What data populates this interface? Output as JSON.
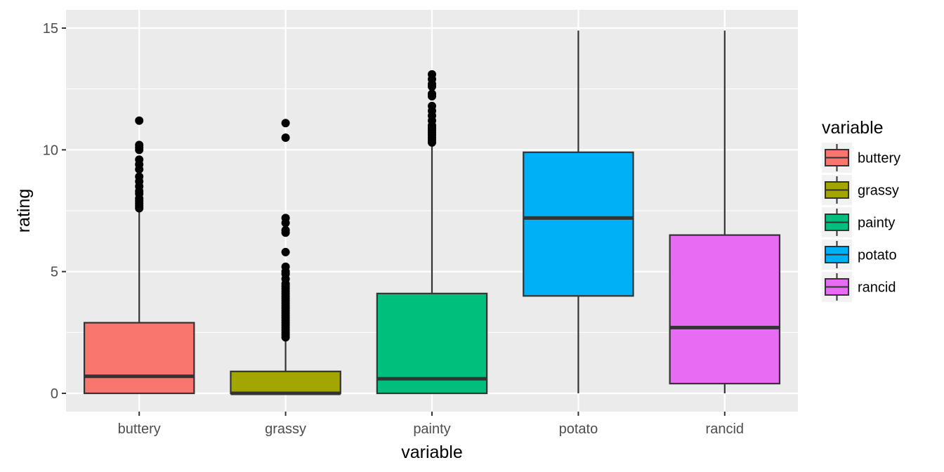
{
  "chart_data": {
    "type": "boxplot",
    "xlabel": "variable",
    "ylabel": "rating",
    "ylim": [
      -0.75,
      15.75
    ],
    "yticks": [
      0,
      5,
      10,
      15
    ],
    "grid": true,
    "legend": {
      "title": "variable",
      "position": "right",
      "entries": [
        "buttery",
        "grassy",
        "painty",
        "potato",
        "rancid"
      ]
    },
    "categories": [
      "buttery",
      "grassy",
      "painty",
      "potato",
      "rancid"
    ],
    "boxes": [
      {
        "name": "buttery",
        "color": "#F8766D",
        "q1": 0.0,
        "median": 0.7,
        "q3": 2.9,
        "whisker_low": 0.0,
        "whisker_high": 7.5,
        "outliers": [
          7.6,
          7.7,
          7.8,
          7.9,
          8.0,
          8.2,
          8.3,
          8.5,
          8.7,
          8.9,
          9.2,
          9.4,
          9.6,
          10.0,
          10.1,
          10.2,
          11.2
        ]
      },
      {
        "name": "grassy",
        "color": "#A3A500",
        "q1": 0.0,
        "median": 0.0,
        "q3": 0.9,
        "whisker_low": 0.0,
        "whisker_high": 2.2,
        "outliers": [
          2.3,
          2.4,
          2.5,
          2.6,
          2.7,
          2.8,
          2.9,
          3.0,
          3.1,
          3.2,
          3.3,
          3.4,
          3.5,
          3.6,
          3.7,
          3.8,
          3.9,
          4.0,
          4.1,
          4.2,
          4.3,
          4.4,
          4.5,
          4.7,
          4.9,
          5.0,
          5.2,
          5.8,
          6.6,
          6.7,
          7.0,
          7.2,
          10.5,
          11.1
        ]
      },
      {
        "name": "painty",
        "color": "#00BF7D",
        "q1": 0.0,
        "median": 0.6,
        "q3": 4.1,
        "whisker_low": 0.0,
        "whisker_high": 10.2,
        "outliers": [
          10.3,
          10.4,
          10.5,
          10.6,
          10.7,
          10.8,
          10.9,
          11.0,
          11.2,
          11.4,
          11.6,
          11.8,
          12.2,
          12.3,
          12.6,
          12.7,
          12.9,
          13.1
        ]
      },
      {
        "name": "potato",
        "color": "#00B0F6",
        "q1": 4.0,
        "median": 7.2,
        "q3": 9.9,
        "whisker_low": 0.0,
        "whisker_high": 14.9,
        "outliers": []
      },
      {
        "name": "rancid",
        "color": "#E76BF3",
        "q1": 0.4,
        "median": 2.7,
        "q3": 6.5,
        "whisker_low": 0.0,
        "whisker_high": 14.9,
        "outliers": []
      }
    ]
  }
}
